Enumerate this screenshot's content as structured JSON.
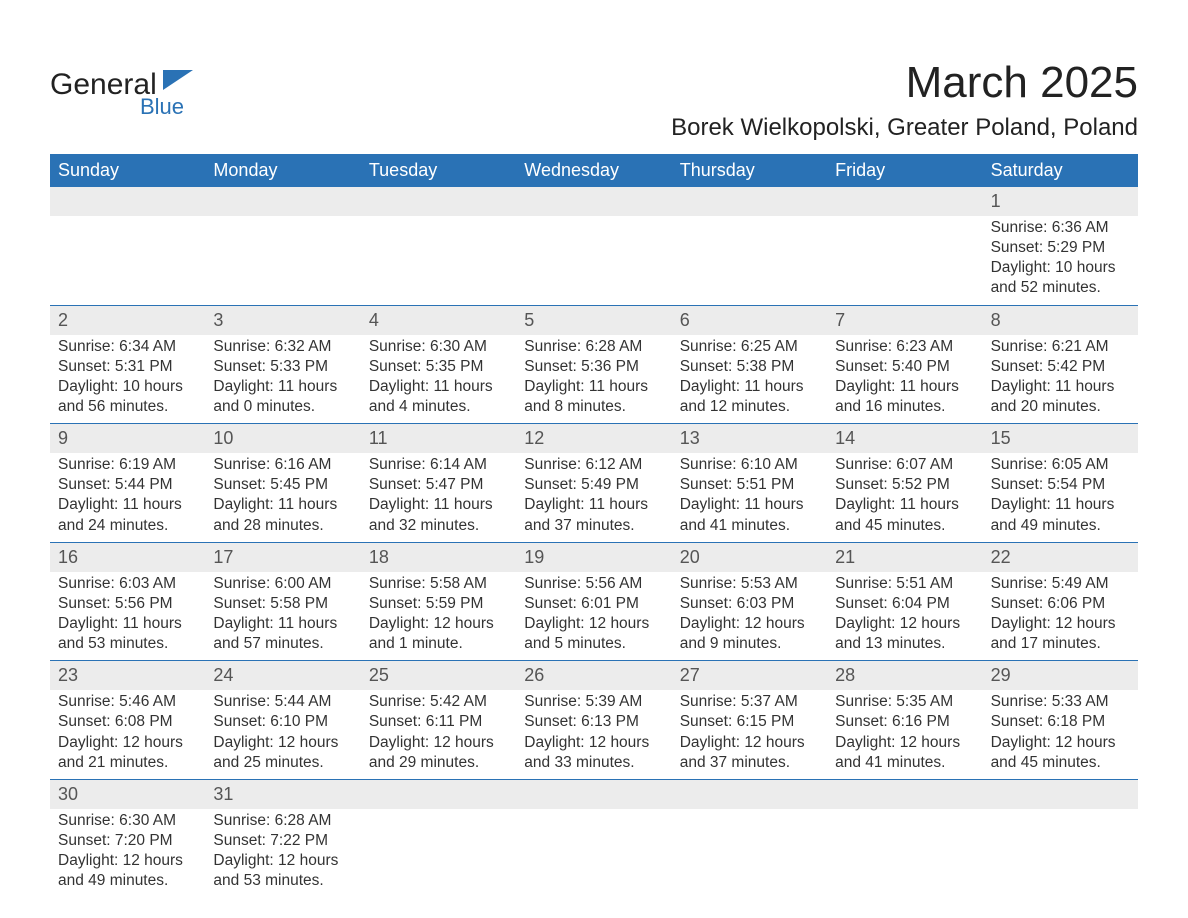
{
  "logo": {
    "text_main": "General",
    "text_sub": "Blue",
    "color_dark": "#222222",
    "color_blue": "#2a72b5"
  },
  "title": {
    "month": "March 2025",
    "location": "Borek Wielkopolski, Greater Poland, Poland"
  },
  "style": {
    "header_bg": "#2a72b5",
    "header_text": "#ffffff",
    "daynum_bg": "#ececec",
    "row_border": "#2a72b5",
    "body_text": "#333333",
    "title_fontsize": 44,
    "location_fontsize": 24,
    "weekday_fontsize": 18,
    "daynum_fontsize": 18,
    "body_fontsize": 15.5
  },
  "weekdays": [
    "Sunday",
    "Monday",
    "Tuesday",
    "Wednesday",
    "Thursday",
    "Friday",
    "Saturday"
  ],
  "weeks": [
    {
      "nums": [
        "",
        "",
        "",
        "",
        "",
        "",
        "1"
      ],
      "cells": [
        {
          "sunrise": "",
          "sunset": "",
          "daylight1": "",
          "daylight2": ""
        },
        {
          "sunrise": "",
          "sunset": "",
          "daylight1": "",
          "daylight2": ""
        },
        {
          "sunrise": "",
          "sunset": "",
          "daylight1": "",
          "daylight2": ""
        },
        {
          "sunrise": "",
          "sunset": "",
          "daylight1": "",
          "daylight2": ""
        },
        {
          "sunrise": "",
          "sunset": "",
          "daylight1": "",
          "daylight2": ""
        },
        {
          "sunrise": "",
          "sunset": "",
          "daylight1": "",
          "daylight2": ""
        },
        {
          "sunrise": "Sunrise: 6:36 AM",
          "sunset": "Sunset: 5:29 PM",
          "daylight1": "Daylight: 10 hours",
          "daylight2": "and 52 minutes."
        }
      ]
    },
    {
      "nums": [
        "2",
        "3",
        "4",
        "5",
        "6",
        "7",
        "8"
      ],
      "cells": [
        {
          "sunrise": "Sunrise: 6:34 AM",
          "sunset": "Sunset: 5:31 PM",
          "daylight1": "Daylight: 10 hours",
          "daylight2": "and 56 minutes."
        },
        {
          "sunrise": "Sunrise: 6:32 AM",
          "sunset": "Sunset: 5:33 PM",
          "daylight1": "Daylight: 11 hours",
          "daylight2": "and 0 minutes."
        },
        {
          "sunrise": "Sunrise: 6:30 AM",
          "sunset": "Sunset: 5:35 PM",
          "daylight1": "Daylight: 11 hours",
          "daylight2": "and 4 minutes."
        },
        {
          "sunrise": "Sunrise: 6:28 AM",
          "sunset": "Sunset: 5:36 PM",
          "daylight1": "Daylight: 11 hours",
          "daylight2": "and 8 minutes."
        },
        {
          "sunrise": "Sunrise: 6:25 AM",
          "sunset": "Sunset: 5:38 PM",
          "daylight1": "Daylight: 11 hours",
          "daylight2": "and 12 minutes."
        },
        {
          "sunrise": "Sunrise: 6:23 AM",
          "sunset": "Sunset: 5:40 PM",
          "daylight1": "Daylight: 11 hours",
          "daylight2": "and 16 minutes."
        },
        {
          "sunrise": "Sunrise: 6:21 AM",
          "sunset": "Sunset: 5:42 PM",
          "daylight1": "Daylight: 11 hours",
          "daylight2": "and 20 minutes."
        }
      ]
    },
    {
      "nums": [
        "9",
        "10",
        "11",
        "12",
        "13",
        "14",
        "15"
      ],
      "cells": [
        {
          "sunrise": "Sunrise: 6:19 AM",
          "sunset": "Sunset: 5:44 PM",
          "daylight1": "Daylight: 11 hours",
          "daylight2": "and 24 minutes."
        },
        {
          "sunrise": "Sunrise: 6:16 AM",
          "sunset": "Sunset: 5:45 PM",
          "daylight1": "Daylight: 11 hours",
          "daylight2": "and 28 minutes."
        },
        {
          "sunrise": "Sunrise: 6:14 AM",
          "sunset": "Sunset: 5:47 PM",
          "daylight1": "Daylight: 11 hours",
          "daylight2": "and 32 minutes."
        },
        {
          "sunrise": "Sunrise: 6:12 AM",
          "sunset": "Sunset: 5:49 PM",
          "daylight1": "Daylight: 11 hours",
          "daylight2": "and 37 minutes."
        },
        {
          "sunrise": "Sunrise: 6:10 AM",
          "sunset": "Sunset: 5:51 PM",
          "daylight1": "Daylight: 11 hours",
          "daylight2": "and 41 minutes."
        },
        {
          "sunrise": "Sunrise: 6:07 AM",
          "sunset": "Sunset: 5:52 PM",
          "daylight1": "Daylight: 11 hours",
          "daylight2": "and 45 minutes."
        },
        {
          "sunrise": "Sunrise: 6:05 AM",
          "sunset": "Sunset: 5:54 PM",
          "daylight1": "Daylight: 11 hours",
          "daylight2": "and 49 minutes."
        }
      ]
    },
    {
      "nums": [
        "16",
        "17",
        "18",
        "19",
        "20",
        "21",
        "22"
      ],
      "cells": [
        {
          "sunrise": "Sunrise: 6:03 AM",
          "sunset": "Sunset: 5:56 PM",
          "daylight1": "Daylight: 11 hours",
          "daylight2": "and 53 minutes."
        },
        {
          "sunrise": "Sunrise: 6:00 AM",
          "sunset": "Sunset: 5:58 PM",
          "daylight1": "Daylight: 11 hours",
          "daylight2": "and 57 minutes."
        },
        {
          "sunrise": "Sunrise: 5:58 AM",
          "sunset": "Sunset: 5:59 PM",
          "daylight1": "Daylight: 12 hours",
          "daylight2": "and 1 minute."
        },
        {
          "sunrise": "Sunrise: 5:56 AM",
          "sunset": "Sunset: 6:01 PM",
          "daylight1": "Daylight: 12 hours",
          "daylight2": "and 5 minutes."
        },
        {
          "sunrise": "Sunrise: 5:53 AM",
          "sunset": "Sunset: 6:03 PM",
          "daylight1": "Daylight: 12 hours",
          "daylight2": "and 9 minutes."
        },
        {
          "sunrise": "Sunrise: 5:51 AM",
          "sunset": "Sunset: 6:04 PM",
          "daylight1": "Daylight: 12 hours",
          "daylight2": "and 13 minutes."
        },
        {
          "sunrise": "Sunrise: 5:49 AM",
          "sunset": "Sunset: 6:06 PM",
          "daylight1": "Daylight: 12 hours",
          "daylight2": "and 17 minutes."
        }
      ]
    },
    {
      "nums": [
        "23",
        "24",
        "25",
        "26",
        "27",
        "28",
        "29"
      ],
      "cells": [
        {
          "sunrise": "Sunrise: 5:46 AM",
          "sunset": "Sunset: 6:08 PM",
          "daylight1": "Daylight: 12 hours",
          "daylight2": "and 21 minutes."
        },
        {
          "sunrise": "Sunrise: 5:44 AM",
          "sunset": "Sunset: 6:10 PM",
          "daylight1": "Daylight: 12 hours",
          "daylight2": "and 25 minutes."
        },
        {
          "sunrise": "Sunrise: 5:42 AM",
          "sunset": "Sunset: 6:11 PM",
          "daylight1": "Daylight: 12 hours",
          "daylight2": "and 29 minutes."
        },
        {
          "sunrise": "Sunrise: 5:39 AM",
          "sunset": "Sunset: 6:13 PM",
          "daylight1": "Daylight: 12 hours",
          "daylight2": "and 33 minutes."
        },
        {
          "sunrise": "Sunrise: 5:37 AM",
          "sunset": "Sunset: 6:15 PM",
          "daylight1": "Daylight: 12 hours",
          "daylight2": "and 37 minutes."
        },
        {
          "sunrise": "Sunrise: 5:35 AM",
          "sunset": "Sunset: 6:16 PM",
          "daylight1": "Daylight: 12 hours",
          "daylight2": "and 41 minutes."
        },
        {
          "sunrise": "Sunrise: 5:33 AM",
          "sunset": "Sunset: 6:18 PM",
          "daylight1": "Daylight: 12 hours",
          "daylight2": "and 45 minutes."
        }
      ]
    },
    {
      "nums": [
        "30",
        "31",
        "",
        "",
        "",
        "",
        ""
      ],
      "cells": [
        {
          "sunrise": "Sunrise: 6:30 AM",
          "sunset": "Sunset: 7:20 PM",
          "daylight1": "Daylight: 12 hours",
          "daylight2": "and 49 minutes."
        },
        {
          "sunrise": "Sunrise: 6:28 AM",
          "sunset": "Sunset: 7:22 PM",
          "daylight1": "Daylight: 12 hours",
          "daylight2": "and 53 minutes."
        },
        {
          "sunrise": "",
          "sunset": "",
          "daylight1": "",
          "daylight2": ""
        },
        {
          "sunrise": "",
          "sunset": "",
          "daylight1": "",
          "daylight2": ""
        },
        {
          "sunrise": "",
          "sunset": "",
          "daylight1": "",
          "daylight2": ""
        },
        {
          "sunrise": "",
          "sunset": "",
          "daylight1": "",
          "daylight2": ""
        },
        {
          "sunrise": "",
          "sunset": "",
          "daylight1": "",
          "daylight2": ""
        }
      ]
    }
  ]
}
